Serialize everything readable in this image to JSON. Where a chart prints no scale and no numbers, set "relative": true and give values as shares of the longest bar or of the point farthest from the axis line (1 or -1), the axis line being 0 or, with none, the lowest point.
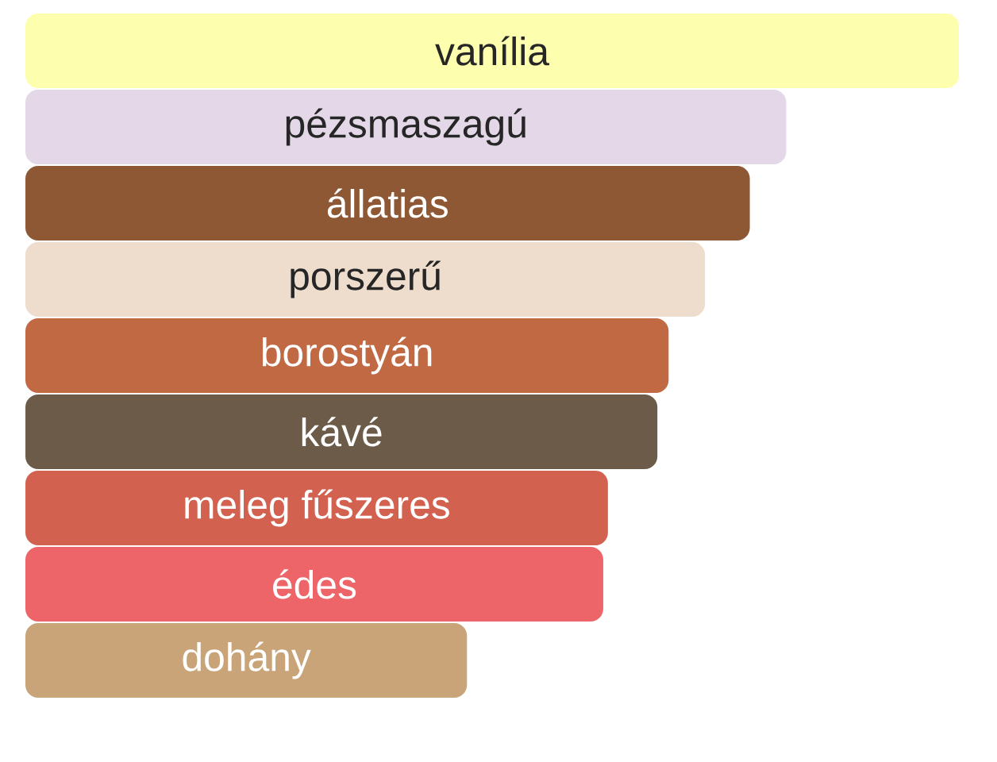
{
  "chart_data": {
    "type": "bar",
    "orientation": "horizontal",
    "relative": true,
    "categories": [
      "vanília",
      "pézsmaszagú",
      "állatias",
      "porszerű",
      "borostyán",
      "kávé",
      "meleg fűszeres",
      "édes",
      "dohány"
    ],
    "values": [
      1,
      0.815,
      0.776,
      0.728,
      0.689,
      0.677,
      0.624,
      0.619,
      0.473
    ],
    "colors": [
      "#fefeaf",
      "#e3d7e8",
      "#8f5834",
      "#eeddcc",
      "#c06942",
      "#6b5b48",
      "#d2624f",
      "#ed6568",
      "#c8a478"
    ]
  }
}
